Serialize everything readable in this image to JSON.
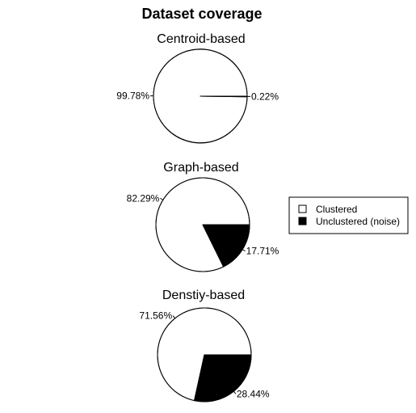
{
  "figure": {
    "title": "Dataset coverage"
  },
  "legend": {
    "placement": "right",
    "entries": [
      {
        "label": "Clustered",
        "color": "#ffffff"
      },
      {
        "label": "Unclustered (noise)",
        "color": "#000000"
      }
    ]
  },
  "chart_data": [
    {
      "type": "pie",
      "title": "Centroid-based",
      "categories": [
        "Clustered",
        "Unclustered (noise)"
      ],
      "values": [
        99.78,
        0.22
      ],
      "labels": [
        "99.78%",
        "0.22%"
      ],
      "colors": [
        "#ffffff",
        "#000000"
      ]
    },
    {
      "type": "pie",
      "title": "Graph-based",
      "categories": [
        "Clustered",
        "Unclustered (noise)"
      ],
      "values": [
        82.29,
        17.71
      ],
      "labels": [
        "82.29%",
        "17.71%"
      ],
      "colors": [
        "#ffffff",
        "#000000"
      ]
    },
    {
      "type": "pie",
      "title": "Denstiy-based",
      "categories": [
        "Clustered",
        "Unclustered (noise)"
      ],
      "values": [
        71.56,
        28.44
      ],
      "labels": [
        "71.56%",
        "28.44%"
      ],
      "colors": [
        "#ffffff",
        "#000000"
      ]
    }
  ]
}
